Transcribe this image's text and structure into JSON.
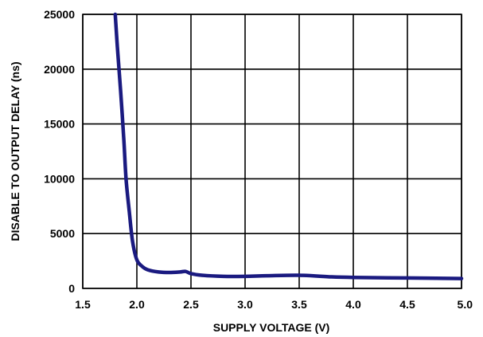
{
  "chart_data": {
    "type": "line",
    "title": "",
    "xlabel": "SUPPLY VOLTAGE (V)",
    "ylabel": "DISABLE TO OUTPUT DELAY (ns)",
    "xlim": [
      1.5,
      5.0
    ],
    "ylim": [
      0,
      25000
    ],
    "xticks": [
      "1.5",
      "2.0",
      "2.5",
      "3.0",
      "3.5",
      "4.0",
      "4.5",
      "5.0"
    ],
    "yticks": [
      "0",
      "5000",
      "10000",
      "15000",
      "20000",
      "25000"
    ],
    "grid": true,
    "legend": "none",
    "colors": {
      "line": "#1a1a80",
      "grid": "#000000"
    },
    "series": [
      {
        "x": [
          1.8,
          1.82,
          1.85,
          1.88,
          1.9,
          1.93,
          1.96,
          2.0,
          2.05,
          2.1,
          2.2,
          2.3,
          2.4,
          2.45,
          2.5,
          2.6,
          2.8,
          3.0,
          3.2,
          3.5,
          3.8,
          4.0,
          4.5,
          5.0
        ],
        "y": [
          25000,
          22000,
          18000,
          13500,
          10000,
          7000,
          4300,
          2600,
          2000,
          1700,
          1500,
          1450,
          1500,
          1550,
          1350,
          1200,
          1100,
          1100,
          1150,
          1200,
          1050,
          1000,
          950,
          900
        ]
      }
    ]
  }
}
